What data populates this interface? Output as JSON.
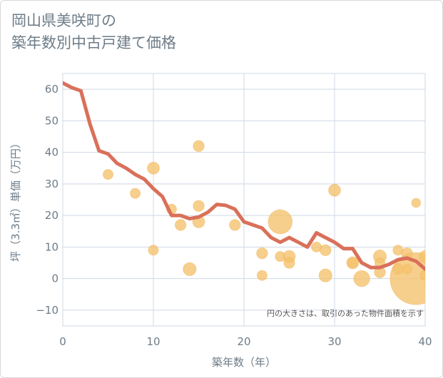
{
  "chart_data": {
    "type": "scatter",
    "title_line1": "岡山県美咲町の",
    "title_line2": "築年数別中古戸建て価格",
    "xlabel": "築年数（年）",
    "ylabel": "坪（3.3㎡）単価（万円）",
    "xlim": [
      0,
      40
    ],
    "ylim": [
      -15,
      65
    ],
    "xticks": [
      0,
      10,
      20,
      30,
      40
    ],
    "yticks": [
      -10,
      0,
      10,
      20,
      30,
      40,
      50,
      60
    ],
    "note": "円の大きさは、取引のあった物件面積を示す",
    "colors": {
      "bubble": "#f5c16b",
      "line": "#d9705a",
      "grid": "#cfd8e3"
    },
    "points": [
      {
        "x": 5,
        "y": 33,
        "s": 1
      },
      {
        "x": 8,
        "y": 27,
        "s": 1
      },
      {
        "x": 10,
        "y": 35,
        "s": 1.2
      },
      {
        "x": 10,
        "y": 9,
        "s": 1
      },
      {
        "x": 12,
        "y": 22,
        "s": 1
      },
      {
        "x": 13,
        "y": 17,
        "s": 1.1
      },
      {
        "x": 14,
        "y": 3,
        "s": 1.3
      },
      {
        "x": 15,
        "y": 42,
        "s": 1.1
      },
      {
        "x": 15,
        "y": 23,
        "s": 1.1
      },
      {
        "x": 15,
        "y": 18,
        "s": 1.2
      },
      {
        "x": 19,
        "y": 17,
        "s": 1.1
      },
      {
        "x": 22,
        "y": 8,
        "s": 1.1
      },
      {
        "x": 22,
        "y": 1,
        "s": 1
      },
      {
        "x": 24,
        "y": 18,
        "s": 2.4
      },
      {
        "x": 24,
        "y": 7,
        "s": 1
      },
      {
        "x": 25,
        "y": 7,
        "s": 1.2
      },
      {
        "x": 25,
        "y": 5,
        "s": 1.1
      },
      {
        "x": 28,
        "y": 10,
        "s": 1
      },
      {
        "x": 29,
        "y": 9,
        "s": 1.1
      },
      {
        "x": 29,
        "y": 1,
        "s": 1.3
      },
      {
        "x": 30,
        "y": 28,
        "s": 1.2
      },
      {
        "x": 32,
        "y": 5,
        "s": 1
      },
      {
        "x": 32,
        "y": 5,
        "s": 1.2
      },
      {
        "x": 33,
        "y": 0,
        "s": 1.6
      },
      {
        "x": 35,
        "y": 7,
        "s": 1.3
      },
      {
        "x": 35,
        "y": 5,
        "s": 1
      },
      {
        "x": 35,
        "y": 2,
        "s": 1.1
      },
      {
        "x": 37,
        "y": 9,
        "s": 1
      },
      {
        "x": 37,
        "y": 3,
        "s": 1.1
      },
      {
        "x": 38,
        "y": 8,
        "s": 1.1
      },
      {
        "x": 38,
        "y": 3,
        "s": 1
      },
      {
        "x": 39,
        "y": 24,
        "s": 0.9
      },
      {
        "x": 39,
        "y": 0,
        "s": 5.2
      },
      {
        "x": 40,
        "y": 7,
        "s": 1.2
      },
      {
        "x": 40,
        "y": 1,
        "s": 1
      }
    ],
    "trend": {
      "x": [
        0,
        1,
        2,
        3,
        4,
        5,
        6,
        7,
        8,
        9,
        10,
        11,
        12,
        13,
        14,
        15,
        16,
        17,
        18,
        19,
        20,
        21,
        22,
        23,
        24,
        25,
        26,
        27,
        28,
        29,
        30,
        31,
        32,
        33,
        34,
        35,
        36,
        37,
        38,
        39,
        40
      ],
      "y": [
        62,
        60.5,
        59.5,
        49,
        40.5,
        39.5,
        36.5,
        35,
        33,
        31.5,
        28.5,
        26,
        20,
        20,
        19,
        19.5,
        21,
        23.5,
        23.2,
        22,
        18,
        17,
        16,
        13,
        11.5,
        13,
        11.5,
        10,
        14.5,
        13,
        11.5,
        9.5,
        9.5,
        5,
        3.5,
        3.5,
        4.5,
        6,
        6.5,
        5.5,
        3
      ]
    }
  }
}
